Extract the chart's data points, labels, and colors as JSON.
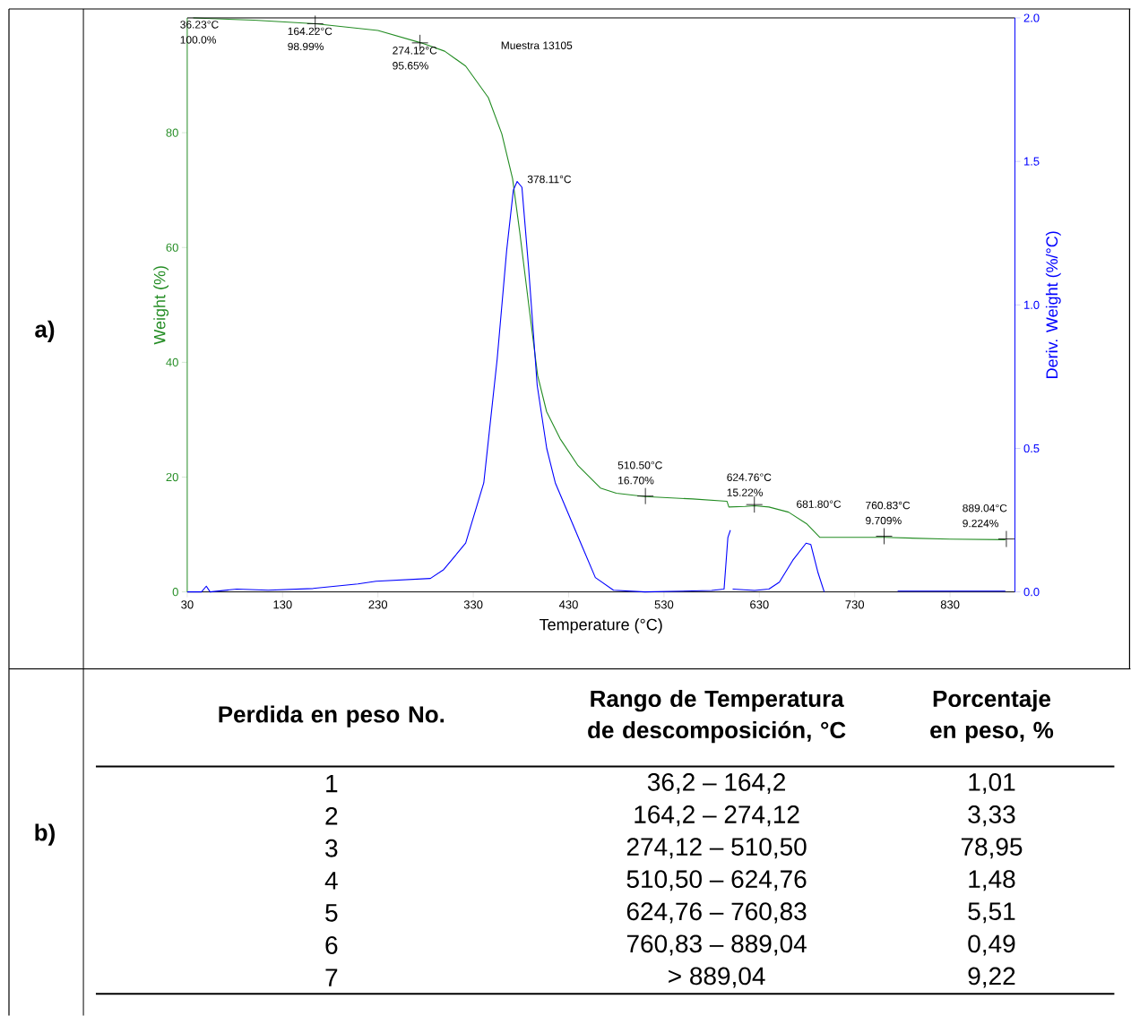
{
  "chart_data": {
    "type": "line",
    "xlabel": "Temperature (°C)",
    "ylabel": "Weight (%)",
    "y2label": "Deriv. Weight (%/°C)",
    "xlim": [
      30,
      898
    ],
    "xticks": [
      30,
      130,
      230,
      330,
      430,
      530,
      630,
      730,
      830
    ],
    "ylim": [
      0,
      100
    ],
    "yticks": [
      0,
      20,
      40,
      60,
      80
    ],
    "y2lim": [
      0,
      2
    ],
    "y2ticks": [
      {
        "value": 0,
        "label": "0.0"
      },
      {
        "value": 0.5,
        "label": "0.5"
      },
      {
        "value": 1,
        "label": "1.0"
      },
      {
        "value": 1.5,
        "label": "1.5"
      },
      {
        "value": 2,
        "label": "2.0"
      }
    ],
    "line_style": "solid",
    "series": [
      {
        "color": "#238c23",
        "x": [
          36.23,
          100,
          164.4,
          230,
          275.3,
          300,
          322,
          345.8,
          359.9,
          371.2,
          378.7,
          388,
          397.5,
          406.9,
          421,
          439.8,
          463.3,
          480,
          510.3,
          560,
          596,
          598,
          615,
          624.9,
          640,
          660.6,
          679.4,
          693.5,
          761,
          829.8,
          888
        ],
        "values": [
          100,
          99.6,
          98.99,
          97.8,
          95.65,
          94.2,
          91.6,
          86.1,
          79.8,
          72,
          62.7,
          50.2,
          37.7,
          31.4,
          26.7,
          22,
          18.1,
          17.2,
          16.6,
          16.2,
          15.8,
          14.8,
          14.9,
          15.0,
          14.8,
          13.9,
          11.9,
          9.5,
          9.5,
          9.2,
          9.1
        ]
      },
      {
        "color": "#0000ff",
        "axis": "y2",
        "x": [
          30,
          45,
          50,
          54,
          82,
          115,
          162,
          209,
          228,
          285,
          299,
          322,
          341,
          355,
          365,
          372,
          376,
          381,
          388,
          397,
          407,
          416,
          430,
          444,
          458,
          477,
          510,
          580,
          593,
          597,
          599.6,
          600,
          602,
          625,
          640,
          651,
          665,
          679,
          684,
          691.6,
          698,
          700,
          775,
          888
        ],
        "values": [
          0,
          0,
          0.02,
          0,
          0.01,
          0.006,
          0.012,
          0.028,
          0.037,
          0.047,
          0.078,
          0.17,
          0.38,
          0.81,
          1.19,
          1.4,
          1.43,
          1.41,
          1.13,
          0.72,
          0.5,
          0.38,
          0.27,
          0.16,
          0.05,
          0.006,
          0,
          0.005,
          0.01,
          0.19,
          0.215,
          null,
          0.01,
          0.005,
          0.01,
          0.034,
          0.11,
          0.17,
          0.165,
          0.066,
          0,
          null,
          0.003,
          0.003
        ]
      }
    ],
    "annotations": [
      {
        "text": "36.23°C 100.0%",
        "x": 36.23,
        "y": 100
      },
      {
        "text": "164.22°C 98.99%",
        "x": 164.22,
        "y": 98.99
      },
      {
        "text": "274.12°C 95.65%",
        "x": 274.12,
        "y": 95.65
      },
      "378.11°C",
      {
        "text": "510.50°C 16.70%",
        "x": 510.5,
        "y": 16.7
      },
      {
        "text": "624.76°C 15.22%",
        "x": 624.76,
        "y": 15.22
      },
      "681.80°C",
      {
        "text": "760.83°C 9.709%",
        "x": 760.83,
        "y": 9.709
      },
      {
        "text": "889.04°C 9.224%",
        "x": 889.04,
        "y": 9.224
      },
      "Muestra 13105",
      "a)",
      "b)",
      "Perdida en peso No.",
      "Rango de Temperatura de descomposición, °C",
      "Porcentaje en peso, %",
      "1",
      "36,2 – 164,2",
      "1,01",
      "2",
      "164,2 – 274,12",
      "3,33",
      "3",
      "274,12 – 510,50",
      "78,95",
      "4",
      "510,50 – 624,76",
      "1,48",
      "5",
      "624,76 – 760,83",
      "5,51",
      "6",
      "760,83 – 889,04",
      "0,49",
      "7",
      "> 889,04",
      "9,22"
    ]
  }
}
